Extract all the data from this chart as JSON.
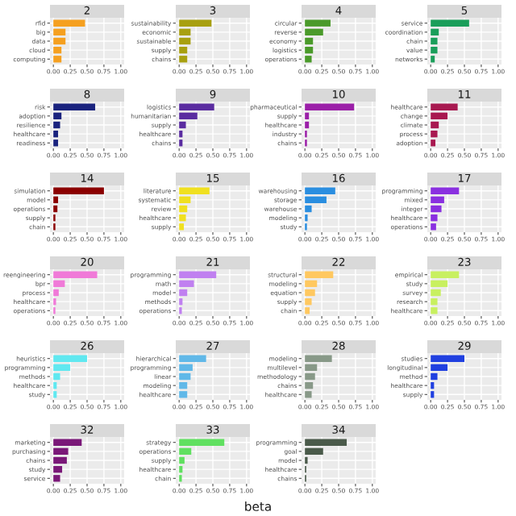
{
  "chart_data": [
    {
      "type": "bar",
      "orientation": "horizontal",
      "title": "2",
      "categories": [
        "rfid",
        "big",
        "data",
        "cloud",
        "computing"
      ],
      "values": [
        0.47,
        0.18,
        0.18,
        0.12,
        0.12
      ],
      "color": "#f5a020",
      "xlim": [
        -0.05,
        1.05
      ],
      "xticks": [
        {
          "value": 0,
          "label": "0.00"
        },
        {
          "value": 0.25,
          "label": "0.25"
        },
        {
          "value": 0.5,
          "label": "0.50"
        },
        {
          "value": 0.75,
          "label": "0.75"
        },
        {
          "value": 1,
          "label": "1.00"
        }
      ],
      "grid": true
    },
    {
      "type": "bar",
      "orientation": "horizontal",
      "title": "3",
      "categories": [
        "sustainability",
        "economic",
        "sustainable",
        "supply",
        "chains"
      ],
      "values": [
        0.48,
        0.17,
        0.17,
        0.12,
        0.12
      ],
      "color": "#a8a010",
      "xlim": [
        -0.05,
        1.05
      ],
      "xticks": [
        {
          "value": 0,
          "label": "0.00"
        },
        {
          "value": 0.25,
          "label": "0.25"
        },
        {
          "value": 0.5,
          "label": "0.50"
        },
        {
          "value": 0.75,
          "label": "0.75"
        },
        {
          "value": 1,
          "label": "1.00"
        }
      ],
      "grid": true
    },
    {
      "type": "bar",
      "orientation": "horizontal",
      "title": "4",
      "categories": [
        "circular",
        "reverse",
        "economy",
        "logistics",
        "operations"
      ],
      "values": [
        0.38,
        0.27,
        0.12,
        0.12,
        0.1
      ],
      "color": "#4a9a2a",
      "xlim": [
        -0.05,
        1.05
      ],
      "xticks": [
        {
          "value": 0,
          "label": "0.00"
        },
        {
          "value": 0.25,
          "label": "0.25"
        },
        {
          "value": 0.5,
          "label": "0.50"
        },
        {
          "value": 0.75,
          "label": "0.75"
        },
        {
          "value": 1,
          "label": "1.00"
        }
      ],
      "grid": true
    },
    {
      "type": "bar",
      "orientation": "horizontal",
      "title": "5",
      "categories": [
        "service",
        "coordination",
        "chain",
        "value",
        "networks"
      ],
      "values": [
        0.57,
        0.12,
        0.1,
        0.1,
        0.06
      ],
      "color": "#1a9e5a",
      "xlim": [
        -0.05,
        1.05
      ],
      "xticks": [
        {
          "value": 0,
          "label": "0.00"
        },
        {
          "value": 0.25,
          "label": "0.25"
        },
        {
          "value": 0.5,
          "label": "0.50"
        },
        {
          "value": 0.75,
          "label": "0.75"
        },
        {
          "value": 1,
          "label": "1.00"
        }
      ],
      "grid": true
    },
    {
      "type": "bar",
      "orientation": "horizontal",
      "title": "8",
      "categories": [
        "risk",
        "adoption",
        "resilience",
        "healthcare",
        "readiness"
      ],
      "values": [
        0.62,
        0.12,
        0.1,
        0.07,
        0.07
      ],
      "color": "#1a237e",
      "xlim": [
        -0.05,
        1.05
      ],
      "xticks": [
        {
          "value": 0,
          "label": "0.00"
        },
        {
          "value": 0.25,
          "label": "0.25"
        },
        {
          "value": 0.5,
          "label": "0.50"
        },
        {
          "value": 0.75,
          "label": "0.75"
        },
        {
          "value": 1,
          "label": "1.00"
        }
      ],
      "grid": true
    },
    {
      "type": "bar",
      "orientation": "horizontal",
      "title": "9",
      "categories": [
        "logistics",
        "humanitarian",
        "supply",
        "healthcare",
        "chains"
      ],
      "values": [
        0.52,
        0.27,
        0.1,
        0.05,
        0.05
      ],
      "color": "#5a2ca0",
      "xlim": [
        -0.05,
        1.05
      ],
      "xticks": [
        {
          "value": 0,
          "label": "0.00"
        },
        {
          "value": 0.25,
          "label": "0.25"
        },
        {
          "value": 0.5,
          "label": "0.50"
        },
        {
          "value": 0.75,
          "label": "0.75"
        },
        {
          "value": 1,
          "label": "1.00"
        }
      ],
      "grid": true
    },
    {
      "type": "bar",
      "orientation": "horizontal",
      "title": "10",
      "categories": [
        "pharmaceutical",
        "supply",
        "healthcare",
        "industry",
        "chains"
      ],
      "values": [
        0.73,
        0.06,
        0.06,
        0.03,
        0.03
      ],
      "color": "#9b1fa8",
      "xlim": [
        -0.05,
        1.05
      ],
      "xticks": [
        {
          "value": 0,
          "label": "0.00"
        },
        {
          "value": 0.25,
          "label": "0.25"
        },
        {
          "value": 0.5,
          "label": "0.50"
        },
        {
          "value": 0.75,
          "label": "0.75"
        },
        {
          "value": 1,
          "label": "1.00"
        }
      ],
      "grid": true
    },
    {
      "type": "bar",
      "orientation": "horizontal",
      "title": "11",
      "categories": [
        "healthcare",
        "change",
        "climate",
        "process",
        "adoption"
      ],
      "values": [
        0.4,
        0.25,
        0.12,
        0.1,
        0.07
      ],
      "color": "#a81950",
      "xlim": [
        -0.05,
        1.05
      ],
      "xticks": [
        {
          "value": 0,
          "label": "0.00"
        },
        {
          "value": 0.25,
          "label": "0.25"
        },
        {
          "value": 0.5,
          "label": "0.50"
        },
        {
          "value": 0.75,
          "label": "0.75"
        },
        {
          "value": 1,
          "label": "1.00"
        }
      ],
      "grid": true
    },
    {
      "type": "bar",
      "orientation": "horizontal",
      "title": "14",
      "categories": [
        "simulation",
        "model",
        "operations",
        "supply",
        "chain"
      ],
      "values": [
        0.75,
        0.07,
        0.06,
        0.03,
        0.03
      ],
      "color": "#8b0000",
      "xlim": [
        -0.05,
        1.05
      ],
      "xticks": [
        {
          "value": 0,
          "label": "0.00"
        },
        {
          "value": 0.25,
          "label": "0.25"
        },
        {
          "value": 0.5,
          "label": "0.50"
        },
        {
          "value": 0.75,
          "label": "0.75"
        },
        {
          "value": 1,
          "label": "1.00"
        }
      ],
      "grid": true
    },
    {
      "type": "bar",
      "orientation": "horizontal",
      "title": "15",
      "categories": [
        "literature",
        "systematic",
        "review",
        "healthcare",
        "supply"
      ],
      "values": [
        0.45,
        0.17,
        0.12,
        0.1,
        0.07
      ],
      "color": "#f0e020",
      "xlim": [
        -0.05,
        1.05
      ],
      "xticks": [
        {
          "value": 0,
          "label": "0.00"
        },
        {
          "value": 0.25,
          "label": "0.25"
        },
        {
          "value": 0.5,
          "label": "0.50"
        },
        {
          "value": 0.75,
          "label": "0.75"
        },
        {
          "value": 1,
          "label": "1.00"
        }
      ],
      "grid": true
    },
    {
      "type": "bar",
      "orientation": "horizontal",
      "title": "16",
      "categories": [
        "warehousing",
        "storage",
        "warehouse",
        "modeling",
        "study"
      ],
      "values": [
        0.45,
        0.32,
        0.1,
        0.04,
        0.03
      ],
      "color": "#2a8ee0",
      "xlim": [
        -0.05,
        1.05
      ],
      "xticks": [
        {
          "value": 0,
          "label": "0.00"
        },
        {
          "value": 0.25,
          "label": "0.25"
        },
        {
          "value": 0.5,
          "label": "0.50"
        },
        {
          "value": 0.75,
          "label": "0.75"
        },
        {
          "value": 1,
          "label": "1.00"
        }
      ],
      "grid": true
    },
    {
      "type": "bar",
      "orientation": "horizontal",
      "title": "17",
      "categories": [
        "programming",
        "mixed",
        "integer",
        "healthcare",
        "operations"
      ],
      "values": [
        0.42,
        0.2,
        0.16,
        0.1,
        0.08
      ],
      "color": "#8a30e0",
      "xlim": [
        -0.05,
        1.05
      ],
      "xticks": [
        {
          "value": 0,
          "label": "0.00"
        },
        {
          "value": 0.25,
          "label": "0.25"
        },
        {
          "value": 0.5,
          "label": "0.50"
        },
        {
          "value": 0.75,
          "label": "0.75"
        },
        {
          "value": 1,
          "label": "1.00"
        }
      ],
      "grid": true
    },
    {
      "type": "bar",
      "orientation": "horizontal",
      "title": "20",
      "categories": [
        "reengineering",
        "bpr",
        "process",
        "healthcare",
        "operations"
      ],
      "values": [
        0.65,
        0.17,
        0.08,
        0.04,
        0.03
      ],
      "color": "#f07ad8",
      "xlim": [
        -0.05,
        1.05
      ],
      "xticks": [
        {
          "value": 0,
          "label": "0.00"
        },
        {
          "value": 0.25,
          "label": "0.25"
        },
        {
          "value": 0.5,
          "label": "0.50"
        },
        {
          "value": 0.75,
          "label": "0.75"
        },
        {
          "value": 1,
          "label": "1.00"
        }
      ],
      "grid": true
    },
    {
      "type": "bar",
      "orientation": "horizontal",
      "title": "21",
      "categories": [
        "programming",
        "math",
        "model",
        "methods",
        "operations"
      ],
      "values": [
        0.55,
        0.22,
        0.12,
        0.05,
        0.04
      ],
      "color": "#c080f0",
      "xlim": [
        -0.05,
        1.05
      ],
      "xticks": [
        {
          "value": 0,
          "label": "0.00"
        },
        {
          "value": 0.25,
          "label": "0.25"
        },
        {
          "value": 0.5,
          "label": "0.50"
        },
        {
          "value": 0.75,
          "label": "0.75"
        },
        {
          "value": 1,
          "label": "1.00"
        }
      ],
      "grid": true
    },
    {
      "type": "bar",
      "orientation": "horizontal",
      "title": "22",
      "categories": [
        "structural",
        "modeling",
        "equation",
        "supply",
        "chain"
      ],
      "values": [
        0.42,
        0.18,
        0.15,
        0.1,
        0.07
      ],
      "color": "#ffc860",
      "xlim": [
        -0.05,
        1.05
      ],
      "xticks": [
        {
          "value": 0,
          "label": "0.00"
        },
        {
          "value": 0.25,
          "label": "0.25"
        },
        {
          "value": 0.5,
          "label": "0.50"
        },
        {
          "value": 0.75,
          "label": "0.75"
        },
        {
          "value": 1,
          "label": "1.00"
        }
      ],
      "grid": true
    },
    {
      "type": "bar",
      "orientation": "horizontal",
      "title": "23",
      "categories": [
        "empirical",
        "study",
        "survey",
        "research",
        "healthcare"
      ],
      "values": [
        0.42,
        0.25,
        0.15,
        0.1,
        0.1
      ],
      "color": "#c8f060",
      "xlim": [
        -0.05,
        1.05
      ],
      "xticks": [
        {
          "value": 0,
          "label": "0.00"
        },
        {
          "value": 0.25,
          "label": "0.25"
        },
        {
          "value": 0.5,
          "label": "0.50"
        },
        {
          "value": 0.75,
          "label": "0.75"
        },
        {
          "value": 1,
          "label": "1.00"
        }
      ],
      "grid": true
    },
    {
      "type": "bar",
      "orientation": "horizontal",
      "title": "26",
      "categories": [
        "heuristics",
        "programming",
        "methods",
        "healthcare",
        "study"
      ],
      "values": [
        0.5,
        0.25,
        0.1,
        0.05,
        0.05
      ],
      "color": "#60e8f0",
      "xlim": [
        -0.05,
        1.05
      ],
      "xticks": [
        {
          "value": 0,
          "label": "0.00"
        },
        {
          "value": 0.25,
          "label": "0.25"
        },
        {
          "value": 0.5,
          "label": "0.50"
        },
        {
          "value": 0.75,
          "label": "0.75"
        },
        {
          "value": 1,
          "label": "1.00"
        }
      ],
      "grid": true
    },
    {
      "type": "bar",
      "orientation": "horizontal",
      "title": "27",
      "categories": [
        "hierarchical",
        "programming",
        "linear",
        "modeling",
        "healthcare"
      ],
      "values": [
        0.4,
        0.2,
        0.17,
        0.12,
        0.12
      ],
      "color": "#60b8e8",
      "xlim": [
        -0.05,
        1.05
      ],
      "xticks": [
        {
          "value": 0,
          "label": "0.00"
        },
        {
          "value": 0.25,
          "label": "0.25"
        },
        {
          "value": 0.5,
          "label": "0.50"
        },
        {
          "value": 0.75,
          "label": "0.75"
        },
        {
          "value": 1,
          "label": "1.00"
        }
      ],
      "grid": true
    },
    {
      "type": "bar",
      "orientation": "horizontal",
      "title": "28",
      "categories": [
        "modeling",
        "multilevel",
        "methodology",
        "chains",
        "healthcare"
      ],
      "values": [
        0.4,
        0.18,
        0.15,
        0.12,
        0.1
      ],
      "color": "#889988",
      "xlim": [
        -0.05,
        1.05
      ],
      "xticks": [
        {
          "value": 0,
          "label": "0.00"
        },
        {
          "value": 0.25,
          "label": "0.25"
        },
        {
          "value": 0.5,
          "label": "0.50"
        },
        {
          "value": 0.75,
          "label": "0.75"
        },
        {
          "value": 1,
          "label": "1.00"
        }
      ],
      "grid": true
    },
    {
      "type": "bar",
      "orientation": "horizontal",
      "title": "29",
      "categories": [
        "studies",
        "longitudinal",
        "method",
        "healthcare",
        "supply"
      ],
      "values": [
        0.5,
        0.25,
        0.1,
        0.05,
        0.05
      ],
      "color": "#2040e0",
      "xlim": [
        -0.05,
        1.05
      ],
      "xticks": [
        {
          "value": 0,
          "label": "0.00"
        },
        {
          "value": 0.25,
          "label": "0.25"
        },
        {
          "value": 0.5,
          "label": "0.50"
        },
        {
          "value": 0.75,
          "label": "0.75"
        },
        {
          "value": 1,
          "label": "1.00"
        }
      ],
      "grid": true
    },
    {
      "type": "bar",
      "orientation": "horizontal",
      "title": "32",
      "categories": [
        "marketing",
        "purchasing",
        "chains",
        "study",
        "service"
      ],
      "values": [
        0.42,
        0.22,
        0.2,
        0.13,
        0.1
      ],
      "color": "#7a1878",
      "xlim": [
        -0.05,
        1.05
      ],
      "xticks": [
        {
          "value": 0,
          "label": "0.00"
        },
        {
          "value": 0.25,
          "label": "0.25"
        },
        {
          "value": 0.5,
          "label": "0.50"
        },
        {
          "value": 0.75,
          "label": "0.75"
        },
        {
          "value": 1,
          "label": "1.00"
        }
      ],
      "grid": true
    },
    {
      "type": "bar",
      "orientation": "horizontal",
      "title": "33",
      "categories": [
        "strategy",
        "operations",
        "supply",
        "healthcare",
        "chain"
      ],
      "values": [
        0.67,
        0.18,
        0.08,
        0.05,
        0.04
      ],
      "color": "#60e060",
      "xlim": [
        -0.05,
        1.05
      ],
      "xticks": [
        {
          "value": 0,
          "label": "0.00"
        },
        {
          "value": 0.25,
          "label": "0.25"
        },
        {
          "value": 0.5,
          "label": "0.50"
        },
        {
          "value": 0.75,
          "label": "0.75"
        },
        {
          "value": 1,
          "label": "1.00"
        }
      ],
      "grid": true,
      "xlabel": "beta"
    },
    {
      "type": "bar",
      "orientation": "horizontal",
      "title": "34",
      "categories": [
        "programming",
        "goal",
        "model",
        "healthcare",
        "chains"
      ],
      "values": [
        0.62,
        0.27,
        0.04,
        0.02,
        0.02
      ],
      "color": "#4a5a4a",
      "xlim": [
        -0.05,
        1.05
      ],
      "xticks": [
        {
          "value": 0,
          "label": "0.00"
        },
        {
          "value": 0.25,
          "label": "0.25"
        },
        {
          "value": 0.5,
          "label": "0.50"
        },
        {
          "value": 0.75,
          "label": "0.75"
        },
        {
          "value": 1,
          "label": "1.00"
        }
      ],
      "grid": true
    }
  ]
}
